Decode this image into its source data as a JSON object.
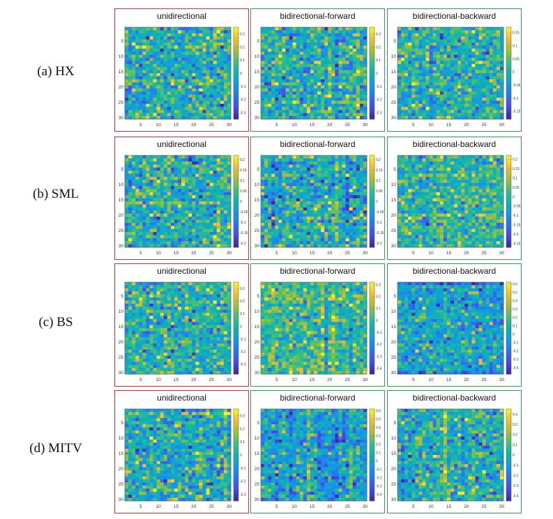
{
  "figure": {
    "rows": [
      {
        "label": "(a) HX",
        "panels": [
          {
            "title": "unidirectional",
            "type": "uni",
            "clim": [
              -0.35,
              0.35
            ],
            "cbar_ticks": [
              0.3,
              0.2,
              0.1,
              0,
              -0.1,
              -0.2,
              -0.3
            ],
            "cbar_tick_labels": [
              "0.3",
              "0.2",
              "0.1",
              "0",
              "-0.1",
              "-0.2",
              "-0.3"
            ]
          },
          {
            "title": "bidirectional-forward",
            "type": "bi",
            "clim": [
              -0.35,
              0.35
            ],
            "cbar_ticks": [
              0.3,
              0.2,
              0.1,
              0,
              -0.1,
              -0.2,
              -0.3
            ],
            "cbar_tick_labels": [
              "0.3",
              "0.2",
              "0.1",
              "0",
              "-0.1",
              "-0.2",
              "-0.3"
            ]
          },
          {
            "title": "bidirectional-backward",
            "type": "bi",
            "clim": [
              -0.18,
              0.17
            ],
            "cbar_ticks": [
              0.15,
              0.1,
              0.05,
              0,
              -0.05,
              -0.1,
              -0.15
            ],
            "cbar_tick_labels": [
              "0.15",
              "0.1",
              "0.05",
              "0",
              "-0.05",
              "-0.1",
              "-0.15"
            ]
          }
        ]
      },
      {
        "label": "(b) SML",
        "panels": [
          {
            "title": "unidirectional",
            "type": "uni",
            "clim": [
              -0.22,
              0.22
            ],
            "cbar_ticks": [
              0.2,
              0.15,
              0.1,
              0.05,
              0,
              -0.05,
              -0.1,
              -0.15,
              -0.2
            ],
            "cbar_tick_labels": [
              "0.2",
              "0.15",
              "0.1",
              "0.05",
              "0",
              "-0.05",
              "-0.1",
              "-0.15",
              "-0.2"
            ]
          },
          {
            "title": "bidirectional-forward",
            "type": "bi",
            "clim": [
              -0.22,
              0.22
            ],
            "cbar_ticks": [
              0.2,
              0.15,
              0.1,
              0.05,
              0,
              -0.05,
              -0.1,
              -0.15,
              -0.2
            ],
            "cbar_tick_labels": [
              "0.2",
              "0.15",
              "0.1",
              "0.05",
              "0",
              "-0.05",
              "-0.1",
              "-0.15",
              "-0.2"
            ]
          },
          {
            "title": "bidirectional-backward",
            "type": "bi",
            "clim": [
              -0.27,
              0.22
            ],
            "cbar_ticks": [
              0.2,
              0.15,
              0.1,
              0.05,
              0,
              -0.05,
              -0.1,
              -0.15,
              -0.2,
              -0.25
            ],
            "cbar_tick_labels": [
              "0.2",
              "0.15",
              "0.1",
              "0.05",
              "0",
              "-0.05",
              "-0.1",
              "-0.15",
              "-0.2",
              "-0.25"
            ]
          }
        ]
      },
      {
        "label": "(c) BS",
        "panels": [
          {
            "title": "unidirectional",
            "type": "uni",
            "clim": [
              -0.38,
              0.35
            ],
            "cbar_ticks": [
              0.3,
              0.2,
              0.1,
              0,
              -0.1,
              -0.2,
              -0.3
            ],
            "cbar_tick_labels": [
              "0.3",
              "0.2",
              "0.1",
              "0",
              "-0.1",
              "-0.2",
              "-0.3"
            ]
          },
          {
            "title": "bidirectional-forward",
            "type": "bi",
            "clim": [
              -0.45,
              0.32
            ],
            "cbar_ticks": [
              0.3,
              0.2,
              0.1,
              0,
              -0.1,
              -0.2,
              -0.3,
              -0.4
            ],
            "cbar_tick_labels": [
              "0.3",
              "0.2",
              "0.1",
              "0",
              "-0.1",
              "-0.2",
              "-0.3",
              "-0.4"
            ]
          },
          {
            "title": "bidirectional-backward",
            "type": "bi",
            "clim": [
              -0.48,
              0.62
            ],
            "cbar_ticks": [
              0.6,
              0.5,
              0.4,
              0.3,
              0.2,
              0.1,
              0,
              -0.1,
              -0.2,
              -0.3,
              -0.4
            ],
            "cbar_tick_labels": [
              "0.6",
              "0.5",
              "0.4",
              "0.3",
              "0.2",
              "0.1",
              "0",
              "-0.1",
              "-0.2",
              "-0.3",
              "-0.4"
            ]
          }
        ]
      },
      {
        "label": "(d) MITV",
        "panels": [
          {
            "title": "unidirectional",
            "type": "uni",
            "clim": [
              -0.35,
              0.35
            ],
            "cbar_ticks": [
              0.3,
              0.2,
              0.1,
              0,
              -0.1,
              -0.2,
              -0.3
            ],
            "cbar_tick_labels": [
              "0.3",
              "0.2",
              "0.1",
              "0",
              "-0.1",
              "-0.2",
              "-0.3"
            ]
          },
          {
            "title": "bidirectional-forward",
            "type": "bi",
            "clim": [
              -0.48,
              0.62
            ],
            "cbar_ticks": [
              0.6,
              0.5,
              0.4,
              0.3,
              0.2,
              0.1,
              0,
              -0.1,
              -0.2,
              -0.3,
              -0.4
            ],
            "cbar_tick_labels": [
              "0.6",
              "0.5",
              "0.4",
              "0.3",
              "0.2",
              "0.1",
              "0",
              "-0.1",
              "-0.2",
              "-0.3",
              "-0.4"
            ]
          },
          {
            "title": "bidirectional-backward",
            "type": "bi",
            "clim": [
              -0.45,
              0.45
            ],
            "cbar_ticks": [
              0.4,
              0.3,
              0.2,
              0.1,
              0,
              -0.1,
              -0.2,
              -0.3,
              -0.4
            ],
            "cbar_tick_labels": [
              "0.4",
              "0.3",
              "0.2",
              "0.1",
              "0",
              "-0.1",
              "-0.2",
              "-0.3",
              "-0.4"
            ]
          }
        ]
      }
    ],
    "border_colors": {
      "unidirectional": "#c8343c",
      "bidirectional": "#2aa352"
    },
    "colormap": "parula"
  },
  "chart_data": {
    "type": "heatmap",
    "grid_size": [
      30,
      30
    ],
    "xlim": [
      0.5,
      30.5
    ],
    "ylim": [
      0.5,
      30.5
    ],
    "x_ticks": [
      5,
      10,
      15,
      20,
      25,
      30
    ],
    "x_tick_labels": [
      "5",
      "10",
      "15",
      "20",
      "25",
      "30"
    ],
    "y_ticks": [
      5,
      10,
      15,
      20,
      25,
      30
    ],
    "y_tick_labels": [
      "5",
      "10",
      "15",
      "20",
      "25",
      "30"
    ],
    "note": "Twelve 30x30 weight heatmaps (4 datasets x 3 directions); cell values are not labeled and are regenerated procedurally around 0 within each panel's color limits."
  }
}
